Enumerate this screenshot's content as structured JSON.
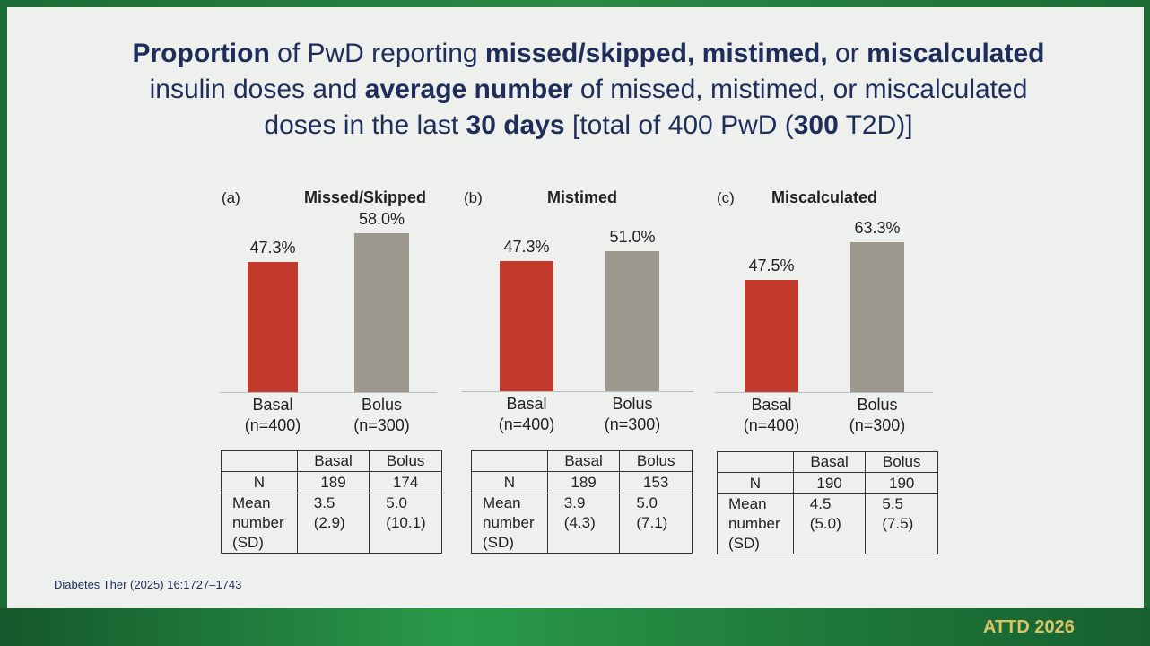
{
  "title_lines": [
    [
      {
        "text": "Proportion",
        "bold": true
      },
      {
        "text": " of PwD reporting ",
        "bold": false
      },
      {
        "text": "missed/skipped, mistimed,",
        "bold": true
      },
      {
        "text": " or ",
        "bold": false
      },
      {
        "text": "miscalculated",
        "bold": true
      }
    ],
    [
      {
        "text": "insulin doses and ",
        "bold": false
      },
      {
        "text": "average number",
        "bold": true
      },
      {
        "text": " of missed, mistimed, or miscalculated",
        "bold": false
      }
    ],
    [
      {
        "text": "doses in the last ",
        "bold": false
      },
      {
        "text": "30 days",
        "bold": true
      },
      {
        "text": " [total of 400 PwD (",
        "bold": false
      },
      {
        "text": "300",
        "bold": true
      },
      {
        "text": " T2D)]",
        "bold": false
      }
    ]
  ],
  "chart_data": [
    {
      "type": "bar",
      "panel": "(a)",
      "title": "Missed/Skipped",
      "categories": [
        "Basal",
        "Bolus"
      ],
      "category_sublabels": [
        "(n=400)",
        "(n=300)"
      ],
      "values": [
        47.3,
        58.0
      ],
      "value_labels": [
        "47.3%",
        "58.0%"
      ],
      "colors": [
        "#c23a2b",
        "#9d988e"
      ]
    },
    {
      "type": "bar",
      "panel": "(b)",
      "title": "Mistimed",
      "categories": [
        "Basal",
        "Bolus"
      ],
      "category_sublabels": [
        "(n=400)",
        "(n=300)"
      ],
      "values": [
        47.3,
        51.0
      ],
      "value_labels": [
        "47.3%",
        "51.0%"
      ],
      "colors": [
        "#c23a2b",
        "#9d988e"
      ]
    },
    {
      "type": "bar",
      "panel": "(c)",
      "title": "Miscalculated",
      "categories": [
        "Basal",
        "Bolus"
      ],
      "category_sublabels": [
        "(n=400)",
        "(n=300)"
      ],
      "values": [
        47.5,
        63.3
      ],
      "value_labels": [
        "47.5%",
        "63.3%"
      ],
      "colors": [
        "#c23a2b",
        "#9d988e"
      ]
    }
  ],
  "tables": [
    {
      "columns": [
        "Basal",
        "Bolus"
      ],
      "rows": [
        {
          "label": "N",
          "cells": [
            "189",
            "174"
          ]
        },
        {
          "label": "Mean\nnumber\n(SD)",
          "cells": [
            "3.5\n(2.9)",
            "5.0\n(10.1)"
          ]
        }
      ]
    },
    {
      "columns": [
        "Basal",
        "Bolus"
      ],
      "rows": [
        {
          "label": "N",
          "cells": [
            "189",
            "153"
          ]
        },
        {
          "label": "Mean\nnumber\n(SD)",
          "cells": [
            "3.9\n(4.3)",
            "5.0\n(7.1)"
          ]
        }
      ]
    },
    {
      "columns": [
        "Basal",
        "Bolus"
      ],
      "rows": [
        {
          "label": "N",
          "cells": [
            "190",
            "190"
          ]
        },
        {
          "label": "Mean\nnumber\n(SD)",
          "cells": [
            "4.5\n(5.0)",
            "5.5\n(7.5)"
          ]
        }
      ]
    }
  ],
  "citation": "Diabetes Ther (2025) 16:1727–1743",
  "footer": "ATTD 2026"
}
